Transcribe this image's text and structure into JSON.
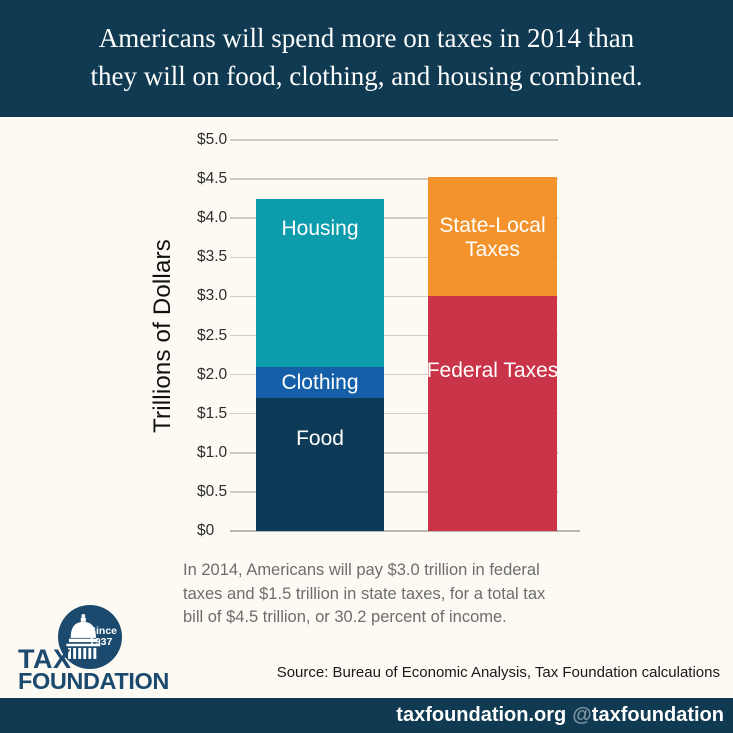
{
  "header": {
    "title_lines": [
      "Americans will spend more on taxes in 2014 than",
      "they will on food, clothing, and housing combined."
    ]
  },
  "chart_data": {
    "type": "bar",
    "stacked": true,
    "ylabel": "Trillions of Dollars",
    "ylim": [
      0,
      5.0
    ],
    "grid": true,
    "yticks": [
      {
        "value": 5.0,
        "label": "$5.0"
      },
      {
        "value": 4.5,
        "label": "$4.5"
      },
      {
        "value": 4.0,
        "label": "$4.0"
      },
      {
        "value": 3.5,
        "label": "$3.5"
      },
      {
        "value": 3.0,
        "label": "$3.0"
      },
      {
        "value": 2.5,
        "label": "$2.5"
      },
      {
        "value": 2.0,
        "label": "$2.0"
      },
      {
        "value": 1.5,
        "label": "$1.5"
      },
      {
        "value": 1.0,
        "label": "$1.0"
      },
      {
        "value": 0.5,
        "label": "$0.5"
      },
      {
        "value": 0.0,
        "label": "$0"
      }
    ],
    "bars": [
      {
        "name": "Food, Clothing, and Housing",
        "total": 4.25,
        "segments": [
          {
            "label": "Food",
            "value": 1.7,
            "color": "#0d3a56"
          },
          {
            "label": "Clothing",
            "value": 0.4,
            "color": "#155fa8"
          },
          {
            "label": "Housing",
            "value": 2.15,
            "color": "#0c9cac"
          }
        ]
      },
      {
        "name": "Taxes",
        "total": 4.5,
        "segments": [
          {
            "label": "Federal Taxes",
            "value": 3.0,
            "color": "#ca3449"
          },
          {
            "label": "State-Local Taxes",
            "value": 1.53,
            "color": "#f4932c"
          }
        ]
      }
    ]
  },
  "caption": {
    "lines": [
      "In 2014, Americans will pay $3.0 trillion in federal",
      "taxes and $1.5 trillion in state taxes, for a total tax",
      "bill of $4.5 trillion, or 30.2 percent of income."
    ]
  },
  "source": "Source: Bureau of Economic Analysis, Tax Foundation calculations",
  "footer": {
    "site": "taxfoundation.org",
    "handle_at": "@",
    "handle_name": "taxfoundation"
  },
  "logo": {
    "word1": "TAX",
    "word2": "FOUNDATION",
    "badge_line1": "Since",
    "badge_line2": "1937"
  },
  "colors": {
    "banner_navy": "#103a52",
    "background_cream": "#fcfaf2",
    "food_navy": "#0d3a56",
    "clothing_blue": "#155fa8",
    "housing_teal": "#0c9cac",
    "federal_red": "#ca3449",
    "state_local_orange": "#f4932c",
    "logo_navy": "#1b4a6e",
    "gridline_gray": "#cfcdc5",
    "handle_gray": "#7f929f"
  }
}
